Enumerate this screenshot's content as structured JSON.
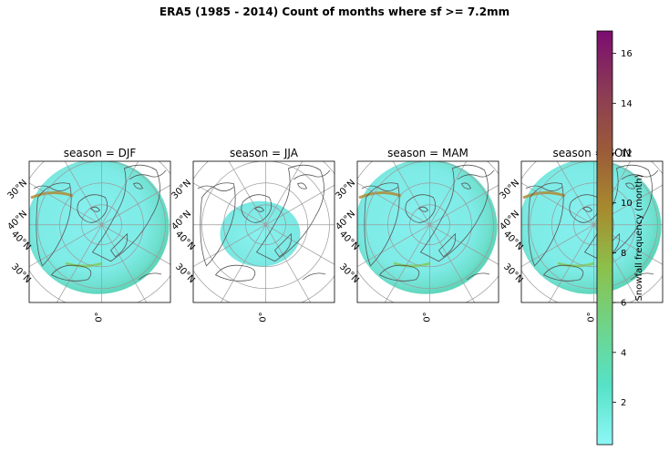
{
  "chart_data": {
    "type": "heatmap",
    "title": "ERA5 (1985 - 2014) Count of months where sf >= 7.2mm",
    "panels": [
      {
        "label": "season = DJF",
        "coverage": "high"
      },
      {
        "label": "season = JJA",
        "coverage": "low"
      },
      {
        "label": "season = MAM",
        "coverage": "high"
      },
      {
        "label": "season = SON",
        "coverage": "high"
      }
    ],
    "lat_labels_left": [
      "30°N",
      "40°N",
      "40°N",
      "30°N"
    ],
    "lon_label_bottom": "0°",
    "colorbar": {
      "label": "Snowfall frequency (month)",
      "ticks": [
        2,
        4,
        6,
        8,
        10,
        12,
        14,
        16
      ],
      "vmin": 0.3,
      "vmax": 16.9,
      "colors": [
        "#8ef7f7",
        "#56e2c7",
        "#6fd48a",
        "#8cc04a",
        "#a78a2e",
        "#9b5a3a",
        "#8b3a56",
        "#7b0d70"
      ]
    },
    "grid": true
  }
}
